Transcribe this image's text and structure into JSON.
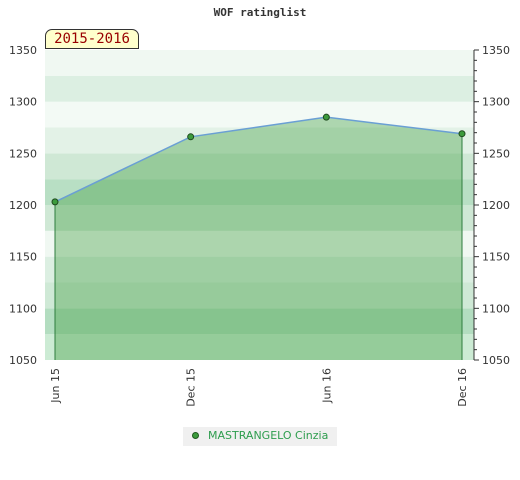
{
  "chart_data": {
    "type": "area",
    "title": "WOF ratinglist",
    "period_label": "2015-2016",
    "categories": [
      "Jun 15",
      "Dec 15",
      "Jun 16",
      "Dec 16"
    ],
    "series": [
      {
        "name": "MASTRANGELO Cinzia",
        "values": [
          1203,
          1266,
          1285,
          1269
        ]
      }
    ],
    "ylim": [
      1050,
      1350
    ],
    "yticks": [
      1050,
      1100,
      1150,
      1200,
      1250,
      1300,
      1350
    ],
    "xlabel": "",
    "ylabel": "",
    "grid": true,
    "legend": "bottom"
  },
  "colors": {
    "line": "#6a9fd4",
    "fill": "#3c9b3c",
    "marker": "#3c9b3c",
    "legend_text": "#2e9d4e"
  }
}
